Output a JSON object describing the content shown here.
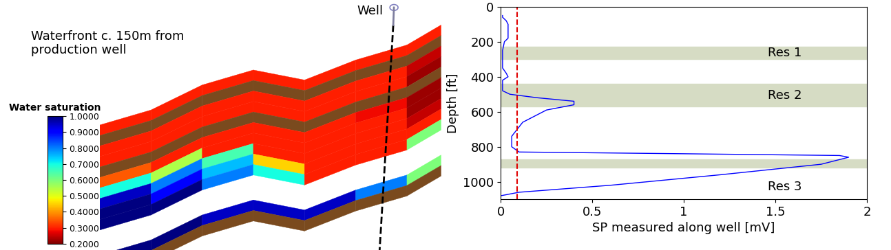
{
  "chart_data": [
    {
      "type": "section",
      "title": "Waterfront c. 150m from\nproduction well",
      "well_label": "Well",
      "colorbar": {
        "title": "Water saturation",
        "range": [
          0.2,
          1.0
        ],
        "ticks": [
          {
            "value": 0.2,
            "label": "0.2000"
          },
          {
            "value": 0.3,
            "label": "0.3000"
          },
          {
            "value": 0.4,
            "label": "0.4000"
          },
          {
            "value": 0.5,
            "label": "0.5000"
          },
          {
            "value": 0.6,
            "label": "0.6000"
          },
          {
            "value": 0.7,
            "label": "0.7000"
          },
          {
            "value": 0.8,
            "label": "0.8000"
          },
          {
            "value": 0.9,
            "label": "0.9000"
          },
          {
            "value": 1.0,
            "label": "1.0000"
          }
        ]
      },
      "layers": [
        [
          0.3,
          0.3,
          0.3,
          0.3,
          0.3,
          0.3,
          0.3
        ],
        [
          null,
          null,
          null,
          null,
          null,
          null,
          null
        ],
        [
          0.3,
          0.3,
          0.3,
          0.3,
          0.3,
          0.3,
          0.25
        ],
        [
          0.3,
          0.3,
          0.3,
          0.3,
          0.3,
          0.3,
          0.22
        ],
        [
          null,
          null,
          null,
          null,
          null,
          null,
          null
        ],
        [
          0.35,
          0.3,
          0.3,
          0.3,
          0.3,
          0.28,
          0.22
        ],
        [
          0.7,
          0.55,
          0.3,
          0.3,
          0.3,
          0.3,
          0.22
        ],
        [
          0.95,
          0.8,
          0.65,
          0.3,
          0.3,
          0.3,
          0.25
        ],
        [
          1.0,
          0.9,
          0.75,
          0.45,
          0.3,
          0.3,
          0.3
        ],
        [
          1.0,
          1.0,
          0.8,
          0.7,
          0.3,
          0.3,
          0.6
        ],
        [
          1.0,
          1.0,
          0.95,
          0.95,
          0.95,
          0.8,
          0.6
        ],
        [
          null,
          null,
          null,
          null,
          null,
          null,
          null
        ]
      ]
    },
    {
      "type": "line",
      "x_label": "SP measured along well [mV]",
      "y_label": "Depth [ft]",
      "xlim": [
        0,
        2
      ],
      "xticks": [
        0,
        0.5,
        1,
        1.5,
        2
      ],
      "ylim": [
        1100,
        0
      ],
      "yticks": [
        0,
        200,
        400,
        600,
        800,
        1000
      ],
      "color": "#0000ff",
      "x": [
        0.01,
        0.01,
        0.03,
        0.04,
        0.04,
        0.02,
        0.01,
        0.01,
        0.03,
        0.04,
        0.01,
        0.01,
        0.05,
        0.2,
        0.4,
        0.4,
        0.25,
        0.12,
        0.06,
        0.06,
        0.1,
        1.0,
        1.85,
        1.9,
        1.75,
        1.2,
        0.6,
        0.1,
        0
      ],
      "y": [
        50,
        60,
        80,
        100,
        180,
        200,
        250,
        350,
        380,
        400,
        420,
        480,
        500,
        520,
        540,
        560,
        590,
        660,
        740,
        800,
        830,
        840,
        850,
        860,
        900,
        960,
        1020,
        1060,
        1080
      ],
      "reference_line": {
        "value": 0.09,
        "color": "#e00000",
        "line_style": "dashed"
      },
      "zones": [
        {
          "name": "Res 1",
          "top": 230,
          "bottom": 300
        },
        {
          "name": "Res 2",
          "top": 440,
          "bottom": 570
        },
        {
          "name": "Res 3",
          "top": 870,
          "bottom": 920
        }
      ],
      "zone_color": "#d6dcc4"
    }
  ]
}
